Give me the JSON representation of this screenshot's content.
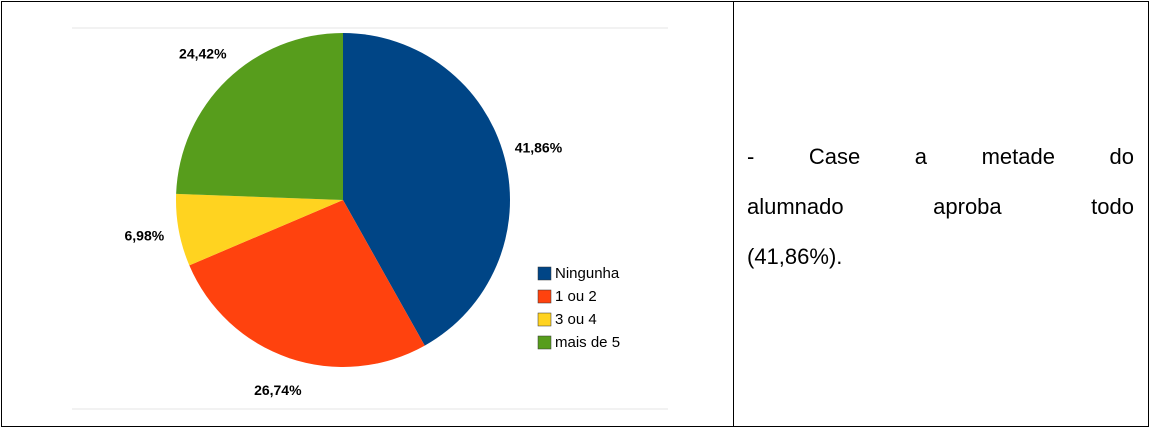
{
  "chart_data": {
    "type": "pie",
    "categories": [
      "Ningunha",
      "1 ou 2",
      "3 ou 4",
      "mais de 5"
    ],
    "values": [
      41.86,
      26.74,
      6.98,
      24.42
    ],
    "value_labels": [
      "41,86%",
      "26,74%",
      "6,98%",
      "24,42%"
    ],
    "colors": [
      "#004586",
      "#ff420e",
      "#ffd320",
      "#579d1c"
    ]
  },
  "text": {
    "lines": [
      "- Case a metade do",
      "alumnado aproba todo",
      "(41,86%)."
    ]
  }
}
